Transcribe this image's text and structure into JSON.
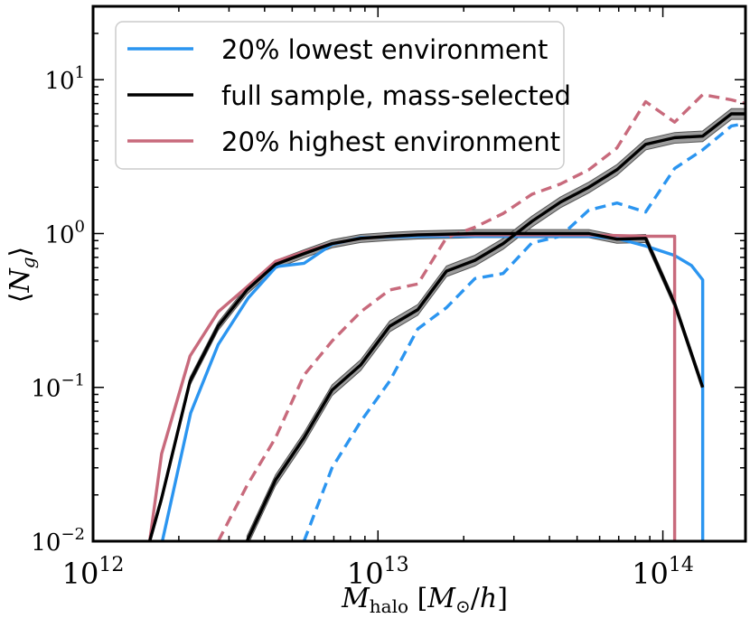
{
  "chart_data": {
    "type": "line",
    "xlabel": "M_halo [M_⊙/h]",
    "ylabel": "⟨N_g⟩",
    "x_scale": "log",
    "y_scale": "log",
    "xlim": [
      1000000000000.0,
      195000000000000.0
    ],
    "ylim": [
      0.01,
      30
    ],
    "x_ticks": [
      {
        "value": 1000000000000.0,
        "base": "10",
        "exp": "12"
      },
      {
        "value": 10000000000000.0,
        "base": "10",
        "exp": "13"
      },
      {
        "value": 100000000000000.0,
        "base": "10",
        "exp": "14"
      }
    ],
    "y_ticks": [
      {
        "value": 0.01,
        "base": "10",
        "exp": "−2"
      },
      {
        "value": 0.1,
        "base": "10",
        "exp": "−1"
      },
      {
        "value": 1,
        "base": "10",
        "exp": "0"
      },
      {
        "value": 10,
        "base": "10",
        "exp": "1"
      }
    ],
    "legend": {
      "position": "upper-left",
      "entries": [
        {
          "label": "20% lowest environment",
          "color": "#2b95f0"
        },
        {
          "label": "full sample, mass-selected",
          "color": "#000000"
        },
        {
          "label": "20% highest environment",
          "color": "#c86a7c"
        }
      ]
    },
    "series": [
      {
        "name": "20% lowest environment",
        "component": "central",
        "color": "#2b95f0",
        "style": "solid",
        "points": [
          [
            1750000000000.0,
            0.01
          ],
          [
            2200000000000.0,
            0.068
          ],
          [
            2750000000000.0,
            0.19
          ],
          [
            3500000000000.0,
            0.38
          ],
          [
            4400000000000.0,
            0.61
          ],
          [
            5500000000000.0,
            0.64
          ],
          [
            6900000000000.0,
            0.85
          ],
          [
            8700000000000.0,
            0.94
          ],
          [
            11000000000000.0,
            0.95
          ],
          [
            13800000000000.0,
            0.96
          ],
          [
            17400000000000.0,
            0.96
          ],
          [
            21900000000000.0,
            0.96
          ],
          [
            27500000000000.0,
            0.96
          ],
          [
            34700000000000.0,
            0.96
          ],
          [
            43700000000000.0,
            0.96
          ],
          [
            55000000000000.0,
            0.96
          ],
          [
            69000000000000.0,
            0.93
          ],
          [
            87000000000000.0,
            0.83
          ],
          [
            110000000000000.0,
            0.72
          ],
          [
            126000000000000.0,
            0.62
          ],
          [
            138000000000000.0,
            0.5
          ],
          [
            138000000000000.0,
            0.01
          ]
        ]
      },
      {
        "name": "20% lowest environment",
        "component": "satellite",
        "color": "#2b95f0",
        "style": "dashed",
        "points": [
          [
            5500000000000.0,
            0.01
          ],
          [
            6900000000000.0,
            0.03
          ],
          [
            8700000000000.0,
            0.06
          ],
          [
            11000000000000.0,
            0.11
          ],
          [
            13800000000000.0,
            0.24
          ],
          [
            17400000000000.0,
            0.33
          ],
          [
            21900000000000.0,
            0.51
          ],
          [
            27500000000000.0,
            0.55
          ],
          [
            34700000000000.0,
            0.87
          ],
          [
            43700000000000.0,
            0.96
          ],
          [
            55000000000000.0,
            1.42
          ],
          [
            69000000000000.0,
            1.58
          ],
          [
            87000000000000.0,
            1.38
          ],
          [
            110000000000000.0,
            2.65
          ],
          [
            138000000000000.0,
            3.5
          ],
          [
            174000000000000.0,
            5.0
          ],
          [
            195000000000000.0,
            5.2
          ]
        ]
      },
      {
        "name": "full sample, mass-selected",
        "component": "central",
        "color": "#000000",
        "style": "solid",
        "band": 0.06,
        "points": [
          [
            1580000000000.0,
            0.01
          ],
          [
            1740000000000.0,
            0.019
          ],
          [
            2190000000000.0,
            0.11
          ],
          [
            2750000000000.0,
            0.25
          ],
          [
            3470000000000.0,
            0.43
          ],
          [
            4370000000000.0,
            0.63
          ],
          [
            5500000000000.0,
            0.74
          ],
          [
            6900000000000.0,
            0.86
          ],
          [
            8700000000000.0,
            0.93
          ],
          [
            11000000000000.0,
            0.96
          ],
          [
            13800000000000.0,
            0.98
          ],
          [
            17400000000000.0,
            0.99
          ],
          [
            21900000000000.0,
            1.0
          ],
          [
            27500000000000.0,
            1.0
          ],
          [
            34700000000000.0,
            1.0
          ],
          [
            43700000000000.0,
            1.0
          ],
          [
            55000000000000.0,
            1.0
          ],
          [
            69000000000000.0,
            0.92
          ],
          [
            87000000000000.0,
            0.93
          ],
          [
            110000000000000.0,
            0.35
          ],
          [
            138000000000000.0,
            0.1
          ]
        ]
      },
      {
        "name": "full sample, mass-selected",
        "component": "satellite",
        "color": "#000000",
        "style": "solid",
        "band": 0.08,
        "points": [
          [
            3470000000000.0,
            0.01
          ],
          [
            4370000000000.0,
            0.025
          ],
          [
            5500000000000.0,
            0.047
          ],
          [
            6900000000000.0,
            0.096
          ],
          [
            8700000000000.0,
            0.14
          ],
          [
            11000000000000.0,
            0.25
          ],
          [
            13800000000000.0,
            0.32
          ],
          [
            17400000000000.0,
            0.57
          ],
          [
            21900000000000.0,
            0.67
          ],
          [
            27500000000000.0,
            0.86
          ],
          [
            34700000000000.0,
            1.2
          ],
          [
            43700000000000.0,
            1.6
          ],
          [
            55000000000000.0,
            2.0
          ],
          [
            69000000000000.0,
            2.6
          ],
          [
            87000000000000.0,
            3.8
          ],
          [
            110000000000000.0,
            4.2
          ],
          [
            138000000000000.0,
            4.3
          ],
          [
            174000000000000.0,
            6.0
          ],
          [
            195000000000000.0,
            6.0
          ]
        ]
      },
      {
        "name": "20% highest environment",
        "component": "central",
        "color": "#c86a7c",
        "style": "solid",
        "points": [
          [
            1580000000000.0,
            0.01
          ],
          [
            1740000000000.0,
            0.037
          ],
          [
            2190000000000.0,
            0.16
          ],
          [
            2750000000000.0,
            0.31
          ],
          [
            3470000000000.0,
            0.45
          ],
          [
            4370000000000.0,
            0.66
          ],
          [
            5500000000000.0,
            0.76
          ],
          [
            6900000000000.0,
            0.86
          ],
          [
            8700000000000.0,
            0.93
          ],
          [
            11000000000000.0,
            0.96
          ],
          [
            13800000000000.0,
            0.98
          ],
          [
            17400000000000.0,
            0.98
          ],
          [
            21900000000000.0,
            0.98
          ],
          [
            27500000000000.0,
            0.98
          ],
          [
            34700000000000.0,
            0.98
          ],
          [
            43700000000000.0,
            0.98
          ],
          [
            55000000000000.0,
            0.98
          ],
          [
            69000000000000.0,
            0.97
          ],
          [
            87000000000000.0,
            0.96
          ],
          [
            110000000000000.0,
            0.96
          ],
          [
            110000000000000.0,
            0.01
          ]
        ]
      },
      {
        "name": "20% highest environment",
        "component": "satellite",
        "color": "#c86a7c",
        "style": "dashed",
        "points": [
          [
            2750000000000.0,
            0.01
          ],
          [
            3470000000000.0,
            0.023
          ],
          [
            4370000000000.0,
            0.047
          ],
          [
            5500000000000.0,
            0.12
          ],
          [
            6900000000000.0,
            0.2
          ],
          [
            8700000000000.0,
            0.31
          ],
          [
            11000000000000.0,
            0.43
          ],
          [
            13800000000000.0,
            0.47
          ],
          [
            17400000000000.0,
            0.94
          ],
          [
            21900000000000.0,
            1.1
          ],
          [
            27500000000000.0,
            1.35
          ],
          [
            34700000000000.0,
            1.8
          ],
          [
            43700000000000.0,
            2.1
          ],
          [
            55000000000000.0,
            2.6
          ],
          [
            69000000000000.0,
            3.6
          ],
          [
            87000000000000.0,
            7.2
          ],
          [
            110000000000000.0,
            5.3
          ],
          [
            138000000000000.0,
            8.0
          ],
          [
            174000000000000.0,
            7.4
          ],
          [
            195000000000000.0,
            7.0
          ]
        ]
      }
    ]
  }
}
